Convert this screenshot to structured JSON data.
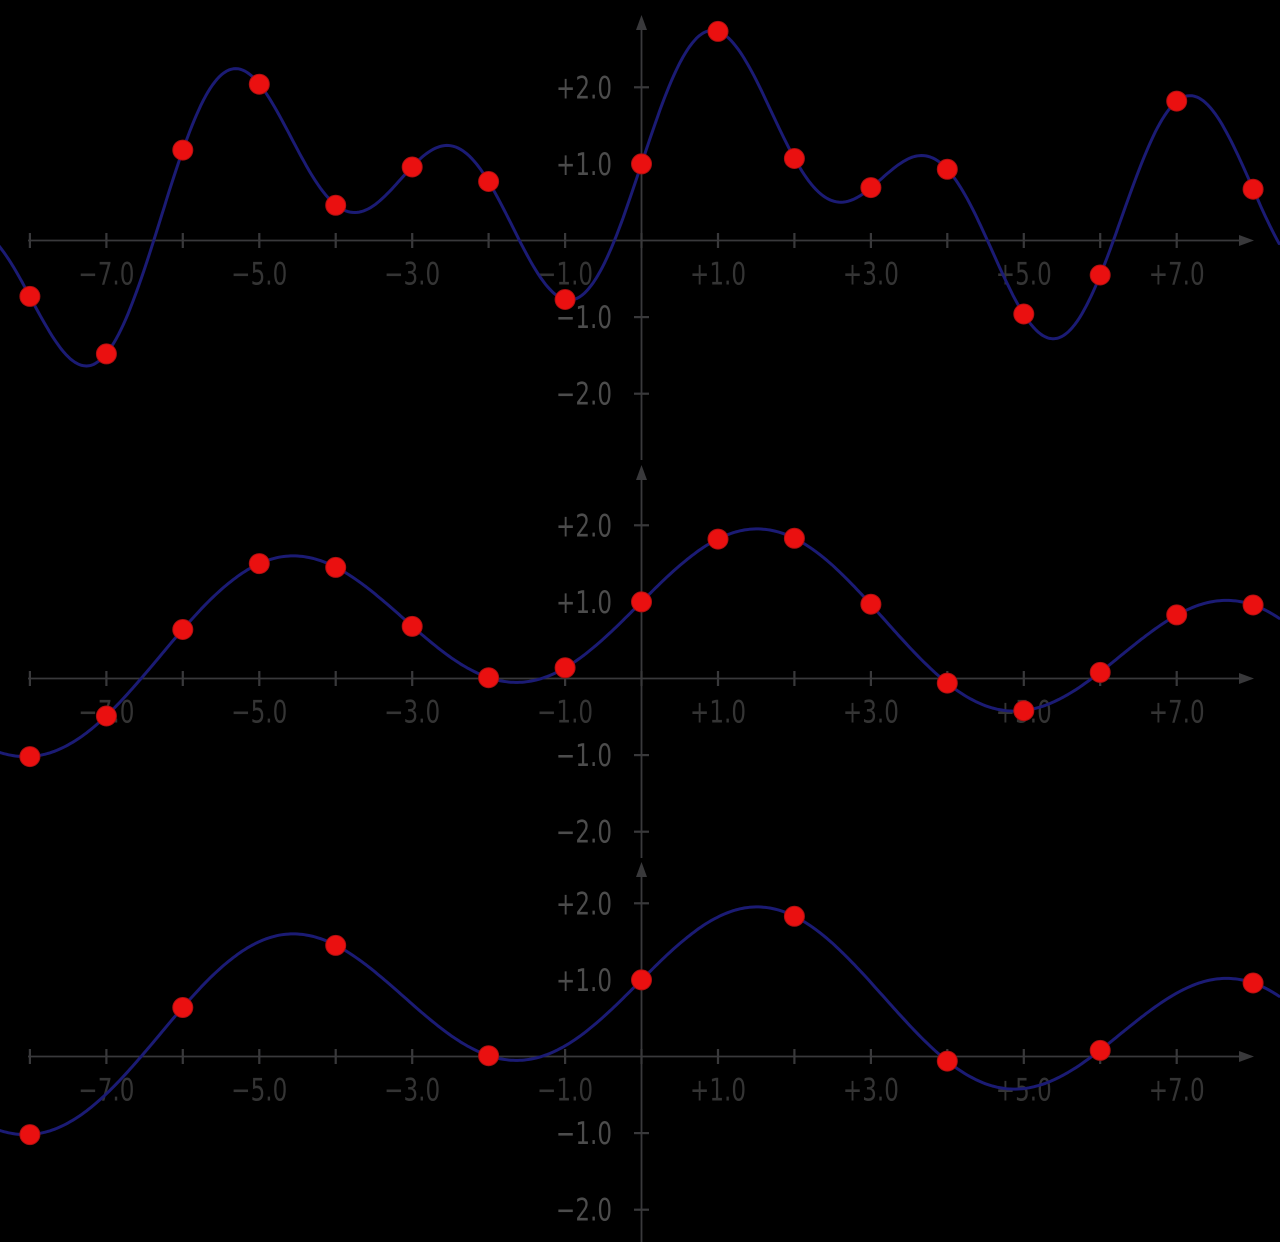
{
  "figure": {
    "background": "#000000",
    "axis_color": "#39393b",
    "x_label_color": "#343434",
    "y_label_color": "#4c4c4c",
    "curve_color": "#1b1b74",
    "point_color": "#ea1010",
    "point_edge_color": "#b01010",
    "point_radius": 10,
    "curve_width": 3
  },
  "chart_data": [
    {
      "id": "plot-top",
      "type": "line",
      "function": "cos(0.2x) + sin(x) + sin(2x)",
      "curve_terms": [
        {
          "fn": "cos",
          "freq": 0.2,
          "amp": 1
        },
        {
          "fn": "sin",
          "freq": 1,
          "amp": 1
        },
        {
          "fn": "sin",
          "freq": 2,
          "amp": 1
        }
      ],
      "curve_x_range": [
        -8.4,
        8.36
      ],
      "axis_x_range": [
        -8,
        8
      ],
      "axis_y_range": [
        -2.9,
        2.9
      ],
      "grid": false,
      "x_tick_marks": [
        -8,
        -7,
        -6,
        -5,
        -4,
        -3,
        -2,
        -1,
        0,
        1,
        2,
        3,
        4,
        5,
        6,
        7
      ],
      "y_tick_marks": [
        -2,
        -1,
        1,
        2
      ],
      "x_tick_labels": [
        {
          "x": -7,
          "label": "−7.0"
        },
        {
          "x": -5,
          "label": "−5.0"
        },
        {
          "x": -3,
          "label": "−3.0"
        },
        {
          "x": -1,
          "label": "−1.0"
        },
        {
          "x": 1,
          "label": "+1.0"
        },
        {
          "x": 3,
          "label": "+3.0"
        },
        {
          "x": 5,
          "label": "+5.0"
        },
        {
          "x": 7,
          "label": "+7.0"
        }
      ],
      "y_tick_labels": [
        {
          "y": 2,
          "label": "+2.0"
        },
        {
          "y": 1,
          "label": "+1.0"
        },
        {
          "y": -1,
          "label": "−1.0"
        },
        {
          "y": -2,
          "label": "−2.0"
        }
      ],
      "samples": [
        [
          -8,
          -0.73
        ],
        [
          -7,
          -1.48
        ],
        [
          -6,
          1.18
        ],
        [
          -5,
          2.04
        ],
        [
          -4,
          0.46
        ],
        [
          -3,
          0.96
        ],
        [
          -2,
          0.77
        ],
        [
          -1,
          -0.77
        ],
        [
          0,
          1.0
        ],
        [
          1,
          2.73
        ],
        [
          2,
          1.07
        ],
        [
          3,
          0.69
        ],
        [
          4,
          0.93
        ],
        [
          5,
          -0.96
        ],
        [
          6,
          -0.45
        ],
        [
          7,
          1.82
        ],
        [
          8,
          0.67
        ]
      ]
    },
    {
      "id": "plot-middle",
      "type": "line",
      "function": "cos(0.2x) + sin(x)",
      "curve_terms": [
        {
          "fn": "cos",
          "freq": 0.2,
          "amp": 1
        },
        {
          "fn": "sin",
          "freq": 1,
          "amp": 1
        }
      ],
      "curve_x_range": [
        -8.4,
        8.36
      ],
      "axis_x_range": [
        -8,
        8
      ],
      "axis_y_range": [
        -2.9,
        2.9
      ],
      "grid": false,
      "x_tick_marks": [
        -8,
        -7,
        -6,
        -5,
        -4,
        -3,
        -2,
        -1,
        0,
        1,
        2,
        3,
        4,
        5,
        6,
        7
      ],
      "y_tick_marks": [
        -2,
        -1,
        1,
        2
      ],
      "x_tick_labels": [
        {
          "x": -7,
          "label": "−7.0"
        },
        {
          "x": -5,
          "label": "−5.0"
        },
        {
          "x": -3,
          "label": "−3.0"
        },
        {
          "x": -1,
          "label": "−1.0"
        },
        {
          "x": 1,
          "label": "+1.0"
        },
        {
          "x": 3,
          "label": "+3.0"
        },
        {
          "x": 5,
          "label": "+5.0"
        },
        {
          "x": 7,
          "label": "+7.0"
        }
      ],
      "y_tick_labels": [
        {
          "y": 2,
          "label": "+2.0"
        },
        {
          "y": 1,
          "label": "+1.0"
        },
        {
          "y": -1,
          "label": "−1.0"
        },
        {
          "y": -2,
          "label": "−2.0"
        }
      ],
      "samples": [
        [
          -8,
          -1.02
        ],
        [
          -7,
          -0.49
        ],
        [
          -6,
          0.64
        ],
        [
          -5,
          1.5
        ],
        [
          -4,
          1.45
        ],
        [
          -3,
          0.68
        ],
        [
          -2,
          0.01
        ],
        [
          -1,
          0.14
        ],
        [
          0,
          1.0
        ],
        [
          1,
          1.82
        ],
        [
          2,
          1.83
        ],
        [
          3,
          0.97
        ],
        [
          4,
          -0.06
        ],
        [
          5,
          -0.42
        ],
        [
          6,
          0.08
        ],
        [
          7,
          0.83
        ],
        [
          8,
          0.96
        ]
      ]
    },
    {
      "id": "plot-bottom",
      "type": "line",
      "function": "cos(0.2x) + sin(x)",
      "curve_terms": [
        {
          "fn": "cos",
          "freq": 0.2,
          "amp": 1
        },
        {
          "fn": "sin",
          "freq": 1,
          "amp": 1
        }
      ],
      "curve_x_range": [
        -8.4,
        8.36
      ],
      "axis_x_range": [
        -8,
        8
      ],
      "axis_y_range": [
        -2.9,
        2.9
      ],
      "grid": false,
      "x_tick_marks": [
        -8,
        -7,
        -6,
        -5,
        -4,
        -3,
        -2,
        -1,
        0,
        1,
        2,
        3,
        4,
        5,
        6,
        7
      ],
      "y_tick_marks": [
        -2,
        -1,
        1,
        2
      ],
      "x_tick_labels": [
        {
          "x": -7,
          "label": "−7.0"
        },
        {
          "x": -5,
          "label": "−5.0"
        },
        {
          "x": -3,
          "label": "−3.0"
        },
        {
          "x": -1,
          "label": "−1.0"
        },
        {
          "x": 1,
          "label": "+1.0"
        },
        {
          "x": 3,
          "label": "+3.0"
        },
        {
          "x": 5,
          "label": "+5.0"
        },
        {
          "x": 7,
          "label": "+7.0"
        }
      ],
      "y_tick_labels": [
        {
          "y": 2,
          "label": "+2.0"
        },
        {
          "y": 1,
          "label": "+1.0"
        },
        {
          "y": -1,
          "label": "−1.0"
        },
        {
          "y": -2,
          "label": "−2.0"
        }
      ],
      "samples": [
        [
          -8,
          -1.02
        ],
        [
          -6,
          0.64
        ],
        [
          -4,
          1.45
        ],
        [
          -2,
          0.01
        ],
        [
          0,
          1.0
        ],
        [
          2,
          1.83
        ],
        [
          4,
          -0.06
        ],
        [
          6,
          0.08
        ],
        [
          8,
          0.96
        ]
      ]
    }
  ]
}
